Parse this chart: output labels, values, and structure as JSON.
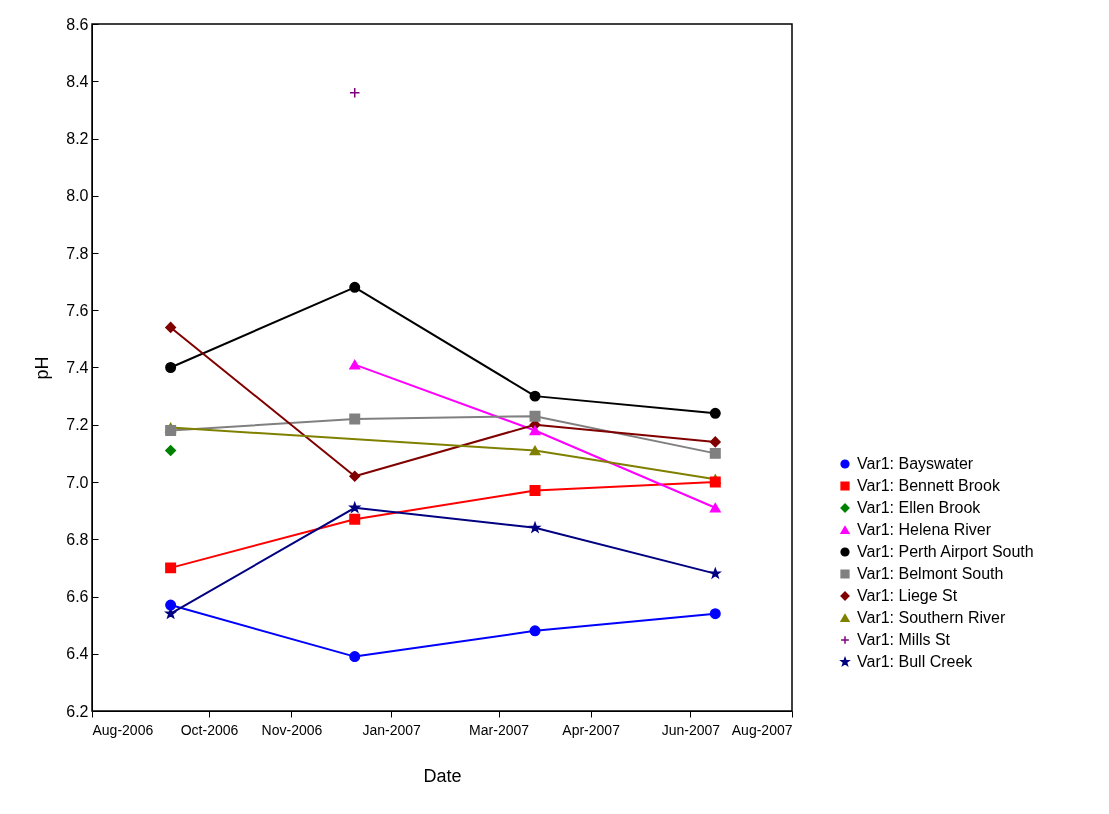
{
  "chart_data": {
    "type": "line",
    "xlabel": "Date",
    "ylabel": "pH",
    "x": [
      "2006-09-11",
      "2006-12-16",
      "2007-03-20",
      "2007-06-22"
    ],
    "xlim": [
      "2006-08-01",
      "2007-08-01"
    ],
    "xticks": [
      {
        "value": "2006-08-01",
        "label": "Aug-2006"
      },
      {
        "value": "2006-10-01",
        "label": "Oct-2006"
      },
      {
        "value": "2006-11-13",
        "label": "Nov-2006"
      },
      {
        "value": "2007-01-04",
        "label": "Jan-2007"
      },
      {
        "value": "2007-03-01",
        "label": "Mar-2007"
      },
      {
        "value": "2007-04-18",
        "label": "Apr-2007"
      },
      {
        "value": "2007-06-09",
        "label": "Jun-2007"
      },
      {
        "value": "2007-08-01",
        "label": "Aug-2007"
      }
    ],
    "ylim": [
      6.2,
      8.6
    ],
    "yticks": [
      6.2,
      6.4,
      6.6,
      6.8,
      {
        "value": 7,
        "label": "7.0"
      },
      7.2,
      7.4,
      7.6,
      7.8,
      {
        "value": 8,
        "label": "8.0"
      },
      8.2,
      8.4,
      8.6
    ],
    "grid": false,
    "legend": "bottom right",
    "line_style": "solid",
    "series": [
      {
        "name": "Var1: Bayswater",
        "color": "#0000ff",
        "marker": "circle",
        "values": [
          6.57,
          6.39,
          6.48,
          6.54
        ]
      },
      {
        "name": "Var1: Bennett Brook",
        "color": "#ff0000",
        "marker": "square",
        "values": [
          6.7,
          6.87,
          6.97,
          7.0
        ]
      },
      {
        "name": "Var1: Ellen Brook",
        "color": "#008000",
        "marker": "diamond",
        "x": [
          "2006-09-11"
        ],
        "values": [
          7.11
        ]
      },
      {
        "name": "Var1: Helena River",
        "color": "#ff00ff",
        "marker": "triangle",
        "x": [
          "2006-12-16",
          "2007-03-20",
          "2007-06-22"
        ],
        "values": [
          7.41,
          7.18,
          6.91
        ]
      },
      {
        "name": "Var1: Perth Airport South",
        "color": "#000000",
        "marker": "circle",
        "values": [
          7.4,
          7.68,
          7.3,
          7.24
        ]
      },
      {
        "name": "Var1: Belmont South",
        "color": "#808080",
        "marker": "square",
        "values": [
          7.18,
          7.22,
          7.23,
          7.1
        ]
      },
      {
        "name": "Var1: Liege St",
        "color": "#800000",
        "marker": "diamond",
        "values": [
          7.54,
          7.02,
          7.2,
          7.14
        ]
      },
      {
        "name": "Var1: Southern River",
        "color": "#808000",
        "marker": "triangle",
        "x": [
          "2006-09-11",
          "2007-03-20",
          "2007-06-22"
        ],
        "values": [
          7.19,
          7.11,
          7.01
        ]
      },
      {
        "name": "Var1: Mills St",
        "color": "#800080",
        "marker": "cross",
        "x": [
          "2006-12-16"
        ],
        "values": [
          8.36
        ]
      },
      {
        "name": "Var1: Bull Creek",
        "color": "#000080",
        "marker": "star",
        "values": [
          6.54,
          6.91,
          6.84,
          6.68
        ]
      }
    ]
  }
}
